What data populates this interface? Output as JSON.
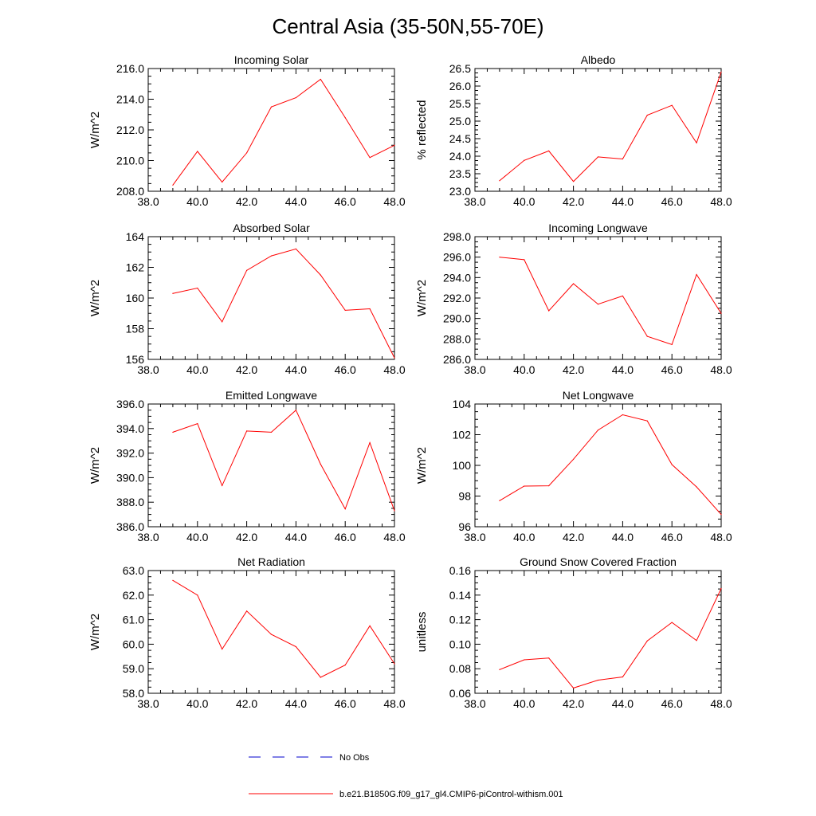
{
  "figure_title": "Central Asia (35-50N,55-70E)",
  "legend": [
    {
      "label": "No Obs",
      "color": "#0000cc",
      "style": "dashed"
    },
    {
      "label": "b.e21.B1850G.f09_g17_gl4.CMIP6-piControl-withism.001",
      "color": "#ff0000",
      "style": "solid"
    }
  ],
  "chart_data": [
    {
      "type": "line",
      "title": "Incoming Solar",
      "xlabel": "",
      "ylabel": "W/m^2",
      "xlim": [
        38,
        48
      ],
      "ylim": [
        208,
        216
      ],
      "xticks": [
        "38.0",
        "40.0",
        "42.0",
        "44.0",
        "46.0",
        "48.0"
      ],
      "yticks": [
        "208.0",
        "210.0",
        "212.0",
        "214.0",
        "216.0"
      ],
      "x": [
        39,
        40,
        41,
        42,
        43,
        44,
        45,
        46,
        47,
        48
      ],
      "series": [
        {
          "name": "b.e21.B1850G.f09_g17_gl4.CMIP6-piControl-withism.001",
          "color": "#ff0000",
          "values": [
            208.4,
            210.6,
            208.6,
            210.5,
            213.5,
            214.1,
            215.3,
            212.8,
            210.2,
            211.0
          ]
        }
      ]
    },
    {
      "type": "line",
      "title": "Albedo",
      "xlabel": "",
      "ylabel": "% reflected",
      "xlim": [
        38,
        48
      ],
      "ylim": [
        23,
        26.5
      ],
      "xticks": [
        "38.0",
        "40.0",
        "42.0",
        "44.0",
        "46.0",
        "48.0"
      ],
      "yticks": [
        "23.0",
        "23.5",
        "24.0",
        "24.5",
        "25.0",
        "25.5",
        "26.0",
        "26.5"
      ],
      "x": [
        39,
        40,
        41,
        42,
        43,
        44,
        45,
        46,
        47,
        48
      ],
      "series": [
        {
          "name": "b.e21.B1850G.f09_g17_gl4.CMIP6-piControl-withism.001",
          "color": "#ff0000",
          "values": [
            23.3,
            23.88,
            24.15,
            23.28,
            23.98,
            23.92,
            25.17,
            25.45,
            24.38,
            26.4
          ]
        }
      ]
    },
    {
      "type": "line",
      "title": "Absorbed Solar",
      "xlabel": "",
      "ylabel": "W/m^2",
      "xlim": [
        38,
        48
      ],
      "ylim": [
        156,
        164
      ],
      "xticks": [
        "38.0",
        "40.0",
        "42.0",
        "44.0",
        "46.0",
        "48.0"
      ],
      "yticks": [
        "156",
        "158",
        "160",
        "162",
        "164"
      ],
      "x": [
        39,
        40,
        41,
        42,
        43,
        44,
        45,
        46,
        47,
        48
      ],
      "series": [
        {
          "name": "b.e21.B1850G.f09_g17_gl4.CMIP6-piControl-withism.001",
          "color": "#ff0000",
          "values": [
            160.3,
            160.65,
            158.45,
            161.8,
            162.75,
            163.2,
            161.5,
            159.2,
            159.3,
            156.1
          ]
        }
      ]
    },
    {
      "type": "line",
      "title": "Incoming Longwave",
      "xlabel": "",
      "ylabel": "W/m^2",
      "xlim": [
        38,
        48
      ],
      "ylim": [
        286,
        298
      ],
      "xticks": [
        "38.0",
        "40.0",
        "42.0",
        "44.0",
        "46.0",
        "48.0"
      ],
      "yticks": [
        "286.0",
        "288.0",
        "290.0",
        "292.0",
        "294.0",
        "296.0",
        "298.0"
      ],
      "x": [
        39,
        40,
        41,
        42,
        43,
        44,
        45,
        46,
        47,
        48
      ],
      "series": [
        {
          "name": "b.e21.B1850G.f09_g17_gl4.CMIP6-piControl-withism.001",
          "color": "#ff0000",
          "values": [
            296.0,
            295.75,
            290.75,
            293.4,
            291.4,
            292.2,
            288.25,
            287.45,
            294.3,
            290.5
          ]
        }
      ]
    },
    {
      "type": "line",
      "title": "Emitted Longwave",
      "xlabel": "",
      "ylabel": "W/m^2",
      "xlim": [
        38,
        48
      ],
      "ylim": [
        386,
        396
      ],
      "xticks": [
        "38.0",
        "40.0",
        "42.0",
        "44.0",
        "46.0",
        "48.0"
      ],
      "yticks": [
        "386.0",
        "388.0",
        "390.0",
        "392.0",
        "394.0",
        "396.0"
      ],
      "x": [
        39,
        40,
        41,
        42,
        43,
        44,
        45,
        46,
        47,
        48
      ],
      "series": [
        {
          "name": "b.e21.B1850G.f09_g17_gl4.CMIP6-piControl-withism.001",
          "color": "#ff0000",
          "values": [
            393.7,
            394.4,
            389.35,
            393.8,
            393.7,
            395.5,
            391.1,
            387.45,
            392.85,
            387.3
          ]
        }
      ]
    },
    {
      "type": "line",
      "title": "Net Longwave",
      "xlabel": "",
      "ylabel": "W/m^2",
      "xlim": [
        38,
        48
      ],
      "ylim": [
        96,
        104
      ],
      "xticks": [
        "38.0",
        "40.0",
        "42.0",
        "44.0",
        "46.0",
        "48.0"
      ],
      "yticks": [
        "96",
        "98",
        "100",
        "102",
        "104"
      ],
      "x": [
        39,
        40,
        41,
        42,
        43,
        44,
        45,
        46,
        47,
        48
      ],
      "series": [
        {
          "name": "b.e21.B1850G.f09_g17_gl4.CMIP6-piControl-withism.001",
          "color": "#ff0000",
          "values": [
            97.7,
            98.65,
            98.67,
            100.4,
            102.3,
            103.3,
            102.9,
            100.05,
            98.6,
            96.8
          ]
        }
      ]
    },
    {
      "type": "line",
      "title": "Net Radiation",
      "xlabel": "",
      "ylabel": "W/m^2",
      "xlim": [
        38,
        48
      ],
      "ylim": [
        58,
        63
      ],
      "xticks": [
        "38.0",
        "40.0",
        "42.0",
        "44.0",
        "46.0",
        "48.0"
      ],
      "yticks": [
        "58.0",
        "59.0",
        "60.0",
        "61.0",
        "62.0",
        "63.0"
      ],
      "x": [
        39,
        40,
        41,
        42,
        43,
        44,
        45,
        46,
        47,
        48
      ],
      "series": [
        {
          "name": "b.e21.B1850G.f09_g17_gl4.CMIP6-piControl-withism.001",
          "color": "#ff0000",
          "values": [
            62.6,
            62.0,
            59.8,
            61.35,
            60.4,
            59.9,
            58.65,
            59.15,
            60.75,
            59.2
          ]
        }
      ]
    },
    {
      "type": "line",
      "title": "Ground Snow Covered Fraction",
      "xlabel": "",
      "ylabel": "unitless",
      "xlim": [
        38,
        48
      ],
      "ylim": [
        0.06,
        0.16
      ],
      "xticks": [
        "38.0",
        "40.0",
        "42.0",
        "44.0",
        "46.0",
        "48.0"
      ],
      "yticks": [
        "0.06",
        "0.08",
        "0.10",
        "0.12",
        "0.14",
        "0.16"
      ],
      "x": [
        39,
        40,
        41,
        42,
        43,
        44,
        45,
        46,
        47,
        48
      ],
      "series": [
        {
          "name": "b.e21.B1850G.f09_g17_gl4.CMIP6-piControl-withism.001",
          "color": "#ff0000",
          "values": [
            0.0793,
            0.0873,
            0.0887,
            0.0643,
            0.0707,
            0.0733,
            0.1027,
            0.1177,
            0.103,
            0.1453
          ]
        }
      ]
    }
  ]
}
